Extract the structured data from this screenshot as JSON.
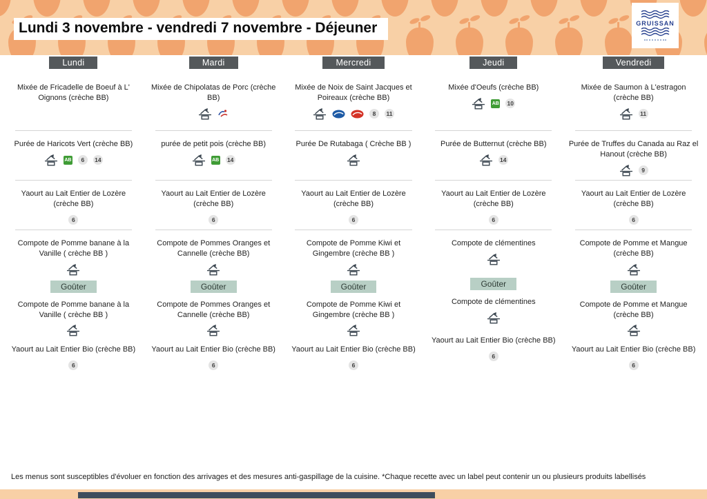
{
  "header": {
    "title": "Lundi 3 novembre - vendredi 7 novembre  - Déjeuner",
    "logo_text": "GRUISSAN"
  },
  "days": [
    {
      "label": "Lundi",
      "items": [
        {
          "text": "Mixée de Fricadelle de Boeuf à L' Oignons (crèche BB)",
          "icons": [],
          "badges": []
        },
        {
          "text": "Purée de Haricots Vert (crèche BB)",
          "icons": [
            "fait-maison",
            "bio-ab"
          ],
          "badges": [
            "6",
            "14"
          ]
        },
        {
          "text": "Yaourt au Lait Entier de Lozère (crèche BB)",
          "icons": [],
          "badges": [
            "6"
          ]
        },
        {
          "text": "Compote de Pomme banane à la Vanille ( crèche BB )",
          "icons": [
            "fait-maison"
          ],
          "badges": []
        }
      ],
      "gouter_label": "Goûter",
      "gouter_items": [
        {
          "text": "Compote de Pomme banane à la Vanille ( crèche BB )",
          "icons": [
            "fait-maison"
          ],
          "badges": []
        },
        {
          "text": "Yaourt au Lait Entier Bio  (crèche BB)",
          "icons": [],
          "badges": [
            "6"
          ]
        }
      ]
    },
    {
      "label": "Mardi",
      "items": [
        {
          "text": "Mixée de Chipolatas de Porc (crèche BB)",
          "icons": [
            "fait-maison",
            "porc-francais"
          ],
          "badges": []
        },
        {
          "text": "purée de petit pois (crèche BB)",
          "icons": [
            "fait-maison",
            "bio-ab"
          ],
          "badges": [
            "14"
          ]
        },
        {
          "text": "Yaourt au Lait Entier de Lozère (crèche BB)",
          "icons": [],
          "badges": [
            "6"
          ]
        },
        {
          "text": "Compote de Pommes Oranges et Cannelle (crèche BB)",
          "icons": [
            "fait-maison"
          ],
          "badges": []
        }
      ],
      "gouter_label": "Goûter",
      "gouter_items": [
        {
          "text": "Compote de Pommes Oranges et Cannelle (crèche BB)",
          "icons": [
            "fait-maison"
          ],
          "badges": []
        },
        {
          "text": "Yaourt au Lait Entier Bio  (crèche BB)",
          "icons": [],
          "badges": [
            "6"
          ]
        }
      ]
    },
    {
      "label": "Mercredi",
      "items": [
        {
          "text": "Mixée de Noix de Saint Jacques et Poireaux (crèche BB)",
          "icons": [
            "fait-maison",
            "pavillon-france",
            "peche-francaise"
          ],
          "badges": [
            "8",
            "11"
          ]
        },
        {
          "text": "Purée De Rutabaga ( Crèche BB )",
          "icons": [
            "fait-maison"
          ],
          "badges": []
        },
        {
          "text": "Yaourt au Lait Entier de Lozère (crèche BB)",
          "icons": [],
          "badges": [
            "6"
          ]
        },
        {
          "text": "Compote de Pomme Kiwi et Gingembre  (crèche BB )",
          "icons": [
            "fait-maison"
          ],
          "badges": []
        }
      ],
      "gouter_label": "Goûter",
      "gouter_items": [
        {
          "text": "Compote de Pomme Kiwi et Gingembre  (crèche BB )",
          "icons": [
            "fait-maison"
          ],
          "badges": []
        },
        {
          "text": "Yaourt au Lait Entier Bio  (crèche BB)",
          "icons": [],
          "badges": [
            "6"
          ]
        }
      ]
    },
    {
      "label": "Jeudi",
      "items": [
        {
          "text": "Mixée d'Oeufs (crèche BB)",
          "icons": [
            "fait-maison",
            "bio-ab"
          ],
          "badges": [
            "10"
          ]
        },
        {
          "text": "Purée de Butternut (crèche BB)",
          "icons": [
            "fait-maison"
          ],
          "badges": [
            "14"
          ]
        },
        {
          "text": "Yaourt au Lait Entier de Lozère (crèche BB)",
          "icons": [],
          "badges": [
            "6"
          ]
        },
        {
          "text": "Compote de clémentines",
          "icons": [
            "fait-maison"
          ],
          "badges": []
        }
      ],
      "gouter_label": "Goûter",
      "gouter_items": [
        {
          "text": "Compote de clémentines",
          "icons": [
            "fait-maison"
          ],
          "badges": []
        },
        {
          "text": "Yaourt au Lait Entier Bio  (crèche BB)",
          "icons": [],
          "badges": [
            "6"
          ]
        }
      ]
    },
    {
      "label": "Vendredi",
      "items": [
        {
          "text": "Mixée de Saumon à L'estragon (crèche BB)",
          "icons": [
            "fait-maison"
          ],
          "badges": [
            "11"
          ]
        },
        {
          "text": "Purée de Truffes du Canada au Raz el Hanout (crèche BB)",
          "icons": [
            "fait-maison"
          ],
          "badges": [
            "9"
          ]
        },
        {
          "text": "Yaourt au Lait Entier de Lozère (crèche BB)",
          "icons": [],
          "badges": [
            "6"
          ]
        },
        {
          "text": "Compote de Pomme et Mangue (crèche BB)",
          "icons": [
            "fait-maison"
          ],
          "badges": []
        }
      ],
      "gouter_label": "Goûter",
      "gouter_items": [
        {
          "text": "Compote de Pomme et Mangue (crèche BB)",
          "icons": [
            "fait-maison"
          ],
          "badges": []
        },
        {
          "text": "Yaourt au Lait Entier Bio  (crèche BB)",
          "icons": [],
          "badges": [
            "6"
          ]
        }
      ]
    }
  ],
  "footer": {
    "note": "Les menus sont susceptibles d'évoluer en fonction des arrivages et des mesures anti-gaspillage de la cuisine. *Chaque recette avec un label peut contenir un ou plusieurs produits labellisés"
  }
}
